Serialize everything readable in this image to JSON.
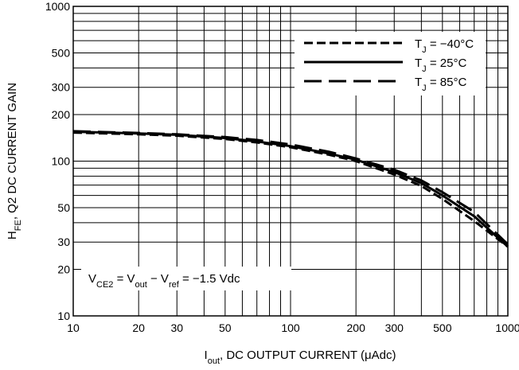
{
  "chart_data": {
    "type": "line",
    "title": "",
    "x_scale": "log",
    "y_scale": "log",
    "xlim": [
      10,
      1000
    ],
    "ylim": [
      10,
      1000
    ],
    "grid": true,
    "legend_position": "top-right",
    "xlabel": {
      "main": "I",
      "sub": "out",
      "rest": ", DC OUTPUT CURRENT (μAdc)"
    },
    "ylabel": {
      "main": "H",
      "sub": "FE",
      "rest": ", Q2 DC CURRENT GAIN"
    },
    "x_ticks": [
      {
        "value": 10,
        "label": "10"
      },
      {
        "value": 20,
        "label": "20"
      },
      {
        "value": 30,
        "label": "30"
      },
      {
        "value": 50,
        "label": "50"
      },
      {
        "value": 100,
        "label": "100"
      },
      {
        "value": 200,
        "label": "200"
      },
      {
        "value": 300,
        "label": "300"
      },
      {
        "value": 500,
        "label": "500"
      },
      {
        "value": 1000,
        "label": "1000"
      }
    ],
    "y_ticks": [
      {
        "value": 10,
        "label": "10"
      },
      {
        "value": 20,
        "label": "20"
      },
      {
        "value": 30,
        "label": "30"
      },
      {
        "value": 50,
        "label": "50"
      },
      {
        "value": 100,
        "label": "100"
      },
      {
        "value": 200,
        "label": "200"
      },
      {
        "value": 300,
        "label": "300"
      },
      {
        "value": 500,
        "label": "500"
      },
      {
        "value": 1000,
        "label": "1000"
      }
    ],
    "annotation": {
      "parts": [
        {
          "t": "V"
        },
        {
          "t": "CE2",
          "sub": true
        },
        {
          "t": " = V"
        },
        {
          "t": "out",
          "sub": true
        },
        {
          "t": " − V"
        },
        {
          "t": "ref",
          "sub": true
        },
        {
          "t": " = −1.5 Vdc"
        }
      ]
    },
    "series": [
      {
        "name": "T_J = −40°C",
        "legend_parts": [
          {
            "t": "T"
          },
          {
            "t": "J",
            "sub": true
          },
          {
            "t": " = −40°C"
          }
        ],
        "dash": "short-dash",
        "x": [
          10,
          20,
          30,
          50,
          70,
          100,
          150,
          200,
          300,
          400,
          500,
          700,
          1000
        ],
        "y": [
          153,
          149,
          146,
          139,
          132,
          123,
          110,
          100,
          82,
          69,
          57,
          41,
          28
        ]
      },
      {
        "name": "T_J = 25°C",
        "legend_parts": [
          {
            "t": "T"
          },
          {
            "t": "J",
            "sub": true
          },
          {
            "t": " = 25°C"
          }
        ],
        "dash": "solid",
        "x": [
          10,
          20,
          30,
          50,
          70,
          100,
          150,
          200,
          300,
          400,
          500,
          700,
          1000
        ],
        "y": [
          155,
          151,
          148,
          141,
          134,
          125,
          112,
          102,
          85,
          72,
          60,
          44,
          28
        ]
      },
      {
        "name": "T_J = 85°C",
        "legend_parts": [
          {
            "t": "T"
          },
          {
            "t": "J",
            "sub": true
          },
          {
            "t": " = 85°C"
          }
        ],
        "dash": "long-dash",
        "x": [
          10,
          20,
          30,
          50,
          70,
          100,
          150,
          200,
          300,
          400,
          500,
          700,
          1000
        ],
        "y": [
          156,
          152,
          149,
          143,
          137,
          128,
          115,
          104,
          88,
          75,
          63,
          47,
          29
        ]
      }
    ]
  }
}
